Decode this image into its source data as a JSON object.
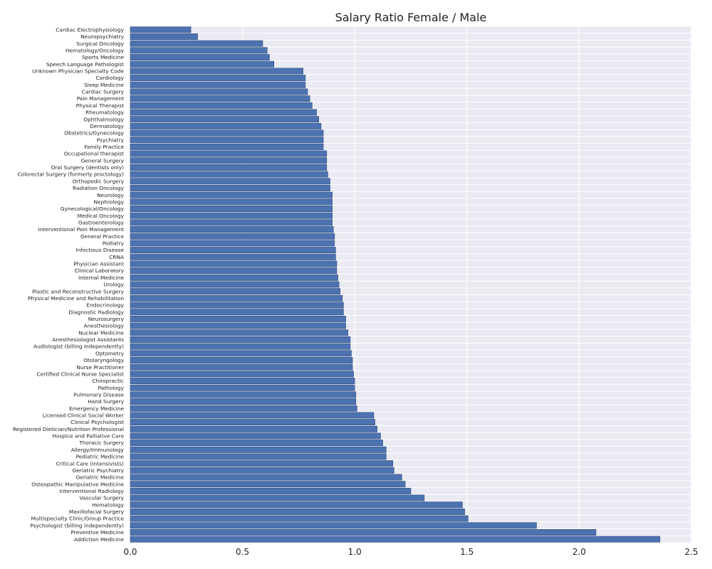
{
  "chart_data": {
    "type": "bar",
    "orientation": "horizontal",
    "title": "Salary Ratio Female / Male",
    "xlabel": "",
    "ylabel": "",
    "xlim": [
      0,
      2.5
    ],
    "xticks": [
      "0.0",
      "0.5",
      "1.0",
      "1.5",
      "2.0",
      "2.5"
    ],
    "grid": true,
    "colors": {
      "bar": "#4c72b0",
      "bar_edge": "#2e4a7a",
      "plot_bg": "#eaeaf2",
      "grid": "#ffffff"
    },
    "categories": [
      "Cardiac Electrophysiology",
      "Neuropsychiatry",
      "Surgical Oncology",
      "Hematology/Oncology",
      "Sports Medicine",
      "Speech Language Pathologist",
      "Unknown Physician Specialty Code",
      "Cardiology",
      "Sleep Medicine",
      "Cardiac Surgery",
      "Pain Management",
      "Physical Therapist",
      "Rheumatology",
      "Ophthalmology",
      "Dermatology",
      "Obstetrics/Gynecology",
      "Psychiatry",
      "Family Practice",
      "Occupational therapist",
      "General Surgery",
      "Oral Surgery (dentists only)",
      "Colorectal Surgery (formerly proctology)",
      "Orthopedic Surgery",
      "Radiation Oncology",
      "Neurology",
      "Nephrology",
      "Gynecological/Oncology",
      "Medical Oncology",
      "Gastroenterology",
      "Interventional Pain Management",
      "General Practice",
      "Podiatry",
      "Infectious Disease",
      "CRNA",
      "Physician Assistant",
      "Clinical Laboratory",
      "Internal Medicine",
      "Urology",
      "Plastic and Reconstructive Surgery",
      "Physical Medicine and Rehabilitation",
      "Endocrinology",
      "Diagnostic Radiology",
      "Neurosurgery",
      "Anesthesiology",
      "Nuclear Medicine",
      "Anesthesiologist Assistants",
      "Audiologist (billing independently)",
      "Optometry",
      "Otolaryngology",
      "Nurse Practitioner",
      "Certified Clinical Nurse Specialist",
      "Chiropractic",
      "Pathology",
      "Pulmonary Disease",
      "Hand Surgery",
      "Emergency Medicine",
      "Licensed Clinical Social Worker",
      "Clinical Psychologist",
      "Registered Dietician/Nutrition Professional",
      "Hospice and Palliative Care",
      "Thoracic Surgery",
      "Allergy/Immunology",
      "Pediatric Medicine",
      "Critical Care (Intensivists)",
      "Geriatric Psychiatry",
      "Geriatric Medicine",
      "Osteopathic Manipulative Medicine",
      "Interventional Radiology",
      "Vascular Surgery",
      "Hematology",
      "Maxillofacial Surgery",
      "Multispecialty Clinic/Group Practice",
      "Psychologist (billing independently)",
      "Preventive Medicine",
      "Addiction Medicine"
    ],
    "values": [
      0.27,
      0.3,
      0.59,
      0.61,
      0.62,
      0.64,
      0.77,
      0.78,
      0.78,
      0.79,
      0.8,
      0.81,
      0.83,
      0.84,
      0.85,
      0.86,
      0.86,
      0.86,
      0.875,
      0.875,
      0.875,
      0.88,
      0.89,
      0.89,
      0.9,
      0.9,
      0.9,
      0.9,
      0.9,
      0.905,
      0.91,
      0.91,
      0.915,
      0.915,
      0.92,
      0.92,
      0.925,
      0.93,
      0.935,
      0.945,
      0.95,
      0.95,
      0.96,
      0.96,
      0.97,
      0.98,
      0.98,
      0.985,
      0.99,
      0.99,
      0.995,
      1.0,
      1.0,
      1.005,
      1.005,
      1.01,
      1.085,
      1.09,
      1.1,
      1.115,
      1.125,
      1.14,
      1.14,
      1.17,
      1.175,
      1.21,
      1.225,
      1.25,
      1.31,
      1.48,
      1.49,
      1.505,
      1.81,
      2.075,
      2.36
    ]
  }
}
